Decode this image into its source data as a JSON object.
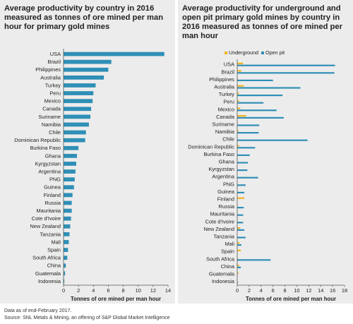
{
  "footnotes": {
    "line1": "Data as of end-February 2017.",
    "line2": "Source: SNL Metals & Mining, an offering of S&P Global Market Intelligence"
  },
  "colors": {
    "bar": "#2f8fb6",
    "underground": "#f0b323",
    "open_pit": "#2f8fb6",
    "background": "#ececec"
  },
  "chart_data": [
    {
      "type": "bar",
      "orientation": "horizontal",
      "title": "Average productivity by country in 2016 measured as tonnes of ore mined per man hour for primary gold mines",
      "xlabel": "Tonnes of ore mined per man hour",
      "ylabel": "",
      "xlim": [
        0,
        14
      ],
      "xticks": [
        0,
        2,
        4,
        6,
        8,
        10,
        12,
        14
      ],
      "grid": false,
      "categories": [
        "USA",
        "Brazil",
        "Philippines",
        "Australia",
        "Turkey",
        "Peru",
        "Mexico",
        "Canada",
        "Suriname",
        "Namibia",
        "Chile",
        "Dominican Republic",
        "Burkina Faso",
        "Ghana",
        "Kyrgyzstan",
        "Argentina",
        "PNG",
        "Guinea",
        "Finland",
        "Russia",
        "Mauritania",
        "Cote d'Ivoire",
        "New Zealand",
        "Tanzania",
        "Mali",
        "Spain",
        "South Africa",
        "China",
        "Guatemala",
        "Indonesia"
      ],
      "values": [
        13.5,
        6.4,
        6.0,
        5.4,
        4.3,
        4.0,
        3.9,
        3.7,
        3.6,
        3.4,
        3.0,
        2.9,
        2.0,
        1.8,
        1.7,
        1.6,
        1.5,
        1.4,
        1.2,
        1.1,
        1.1,
        1.0,
        0.9,
        0.8,
        0.7,
        0.6,
        0.5,
        0.3,
        0.2,
        0.1
      ]
    },
    {
      "type": "bar",
      "orientation": "horizontal",
      "title": "Average productivity for underground and open pit primary gold mines by country in 2016 measured as tonnes of ore mined per man hour",
      "xlabel": "Tonnes of ore mined per man hour",
      "ylabel": "",
      "xlim": [
        0,
        18
      ],
      "xticks": [
        0,
        2,
        4,
        6,
        8,
        10,
        12,
        14,
        16,
        18
      ],
      "grid": false,
      "legend_position": "top-left",
      "categories": [
        "USA",
        "Brazil",
        "Philippines",
        "Australia",
        "Turkey",
        "Peru",
        "Mexico",
        "Canada",
        "Suriname",
        "Namibia",
        "Chile",
        "Dominican Republic",
        "Burkina Faso",
        "Ghana",
        "Kyrgyzstan",
        "Argentina",
        "PNG",
        "Guinea",
        "Finland",
        "Russia",
        "Mauritania",
        "Cote d'Ivoire",
        "New Zealand",
        "Tanzania",
        "Mali",
        "Spain",
        "South Africa",
        "China",
        "Guatemala",
        "Indonesia"
      ],
      "series": [
        {
          "name": "Underground",
          "values": [
            1.0,
            0.7,
            0.1,
            1.1,
            0.3,
            0.3,
            0.5,
            1.5,
            0,
            0.2,
            0,
            0.3,
            0,
            0,
            0,
            0,
            0,
            0,
            1.2,
            0,
            0,
            0,
            0.5,
            0,
            0.4,
            0.6,
            0.1,
            0.3,
            0.2,
            0
          ]
        },
        {
          "name": "Open pit",
          "values": [
            16.4,
            16.3,
            6.0,
            10.6,
            7.6,
            4.4,
            6.6,
            7.8,
            3.7,
            3.6,
            11.8,
            3.0,
            2.1,
            1.8,
            1.7,
            3.5,
            1.4,
            1.2,
            0,
            1.1,
            1.0,
            1.0,
            1.2,
            1.4,
            0.7,
            0,
            5.6,
            0.6,
            0,
            0.1
          ]
        }
      ]
    }
  ]
}
